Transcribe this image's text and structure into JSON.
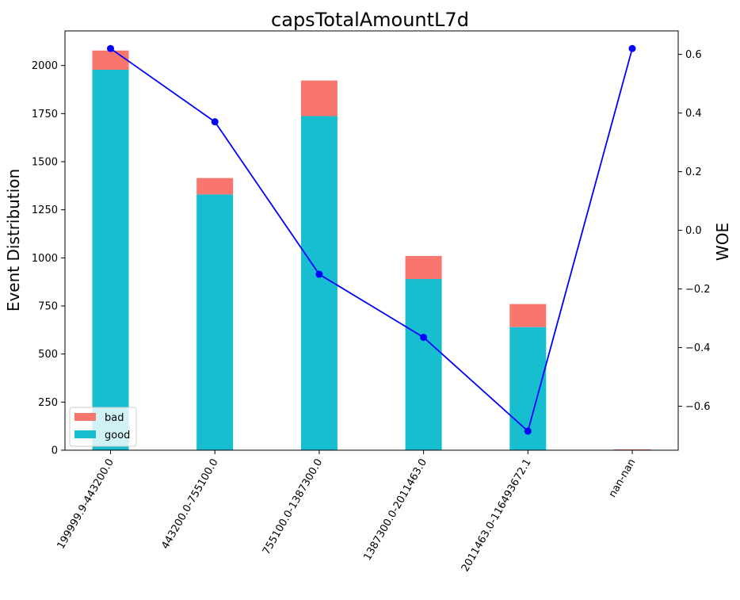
{
  "chart_data": {
    "type": "bar",
    "title": "capsTotalAmountL7d",
    "xlabel": "",
    "ylabel": "Event Distribution",
    "y2label": "WOE",
    "categories": [
      "199999.9-443200.0",
      "443200.0-755100.0",
      "755100.0-1387300.0",
      "1387300.0-2011463.0",
      "2011463.0-116493672.1",
      "nan-nan"
    ],
    "stacked": true,
    "series": [
      {
        "name": "good",
        "color": "#17becf",
        "values": [
          1978,
          1330,
          1737,
          890,
          640,
          0
        ]
      },
      {
        "name": "bad",
        "color": "#f8766d",
        "values": [
          100,
          85,
          185,
          120,
          120,
          4
        ]
      }
    ],
    "line_series": {
      "color": "#0000ff",
      "axis": "right",
      "values": [
        0.62,
        0.37,
        -0.15,
        -0.365,
        -0.685,
        0.62
      ]
    },
    "ylim": [
      0,
      2180
    ],
    "y2lim": [
      -0.75,
      0.68
    ],
    "yticks": [
      0,
      250,
      500,
      750,
      1000,
      1250,
      1500,
      1750,
      2000
    ],
    "y2ticks": [
      -0.6,
      -0.4,
      -0.2,
      0.0,
      0.2,
      0.4,
      0.6
    ],
    "ytick_labels": [
      "0",
      "250",
      "500",
      "750",
      "1000",
      "1250",
      "1500",
      "1750",
      "2000"
    ],
    "y2tick_labels": [
      "−0.6",
      "−0.4",
      "−0.2",
      "0.0",
      "0.2",
      "0.4",
      "0.6"
    ],
    "legend_position": "lower-left",
    "grid": false
  }
}
